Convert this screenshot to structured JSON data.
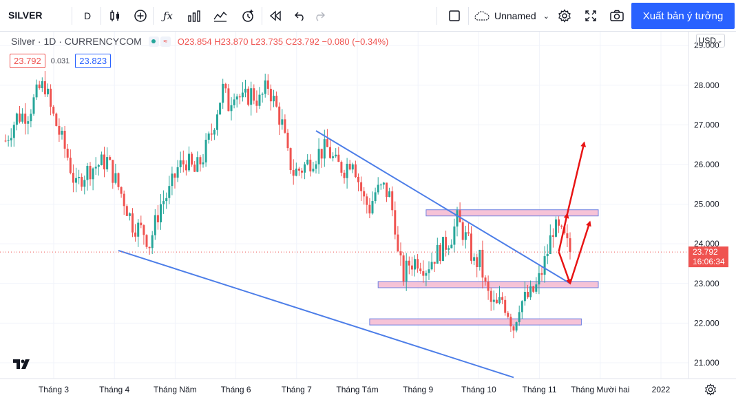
{
  "toolbar": {
    "symbol": "SILVER",
    "interval": "D",
    "layout_name": "Unnamed",
    "publish_label": "Xuất bản ý tưởng"
  },
  "legend": {
    "title": "Silver · 1D · CURRENCYCOM",
    "open": "O23.854",
    "high": "H23.870",
    "low": "L23.735",
    "close": "C23.792",
    "change": "−0.080 (−0.34%)",
    "sell_price": "23.792",
    "spread": "0.031",
    "buy_price": "23.823"
  },
  "currency": "USD",
  "price_label": {
    "price": "23.792",
    "countdown": "16:06:34"
  },
  "colors": {
    "up": "#26a69a",
    "down": "#ef5350",
    "trendline": "#4d7ee8",
    "zone_fill": "#f4b9d0",
    "zone_border": "#6d7fe0",
    "arrow": "#e81414",
    "accent": "#2962ff"
  },
  "chart_data": {
    "type": "candlestick",
    "y_axis": {
      "min": 20.6,
      "max": 29.35,
      "ticks": [
        "29.000",
        "28.000",
        "27.000",
        "26.000",
        "25.000",
        "24.000",
        "23.000",
        "22.000",
        "21.000"
      ]
    },
    "x_axis": {
      "ticks": [
        "Tháng 3",
        "Tháng 4",
        "Tháng Năm",
        "Tháng 6",
        "Tháng 7",
        "Tháng Tám",
        "Tháng 9",
        "Tháng 10",
        "Tháng 11",
        "Tháng Mười hai",
        "2022"
      ]
    },
    "current_price": 23.792,
    "price_path": [
      [
        0,
        26.6
      ],
      [
        4,
        27.2
      ],
      [
        8,
        27.3
      ],
      [
        12,
        27.9
      ],
      [
        14,
        28.0
      ],
      [
        16,
        27.4
      ],
      [
        19,
        26.8
      ],
      [
        22,
        26.2
      ],
      [
        25,
        25.4
      ],
      [
        27,
        25.7
      ],
      [
        30,
        25.9
      ],
      [
        33,
        26.0
      ],
      [
        36,
        26.1
      ],
      [
        39,
        25.6
      ],
      [
        42,
        25.1
      ],
      [
        45,
        24.5
      ],
      [
        47,
        24.4
      ],
      [
        49,
        24.3
      ],
      [
        51,
        24.0
      ],
      [
        53,
        24.5
      ],
      [
        55,
        25.0
      ],
      [
        58,
        25.3
      ],
      [
        61,
        25.9
      ],
      [
        64,
        26.1
      ],
      [
        67,
        25.8
      ],
      [
        70,
        26.2
      ],
      [
        73,
        26.8
      ],
      [
        75,
        27.4
      ],
      [
        77,
        27.9
      ],
      [
        79,
        27.5
      ],
      [
        81,
        27.9
      ],
      [
        84,
        27.6
      ],
      [
        87,
        27.8
      ],
      [
        90,
        27.6
      ],
      [
        93,
        28.0
      ],
      [
        96,
        27.4
      ],
      [
        98,
        27.0
      ],
      [
        100,
        26.2
      ],
      [
        102,
        25.8
      ],
      [
        105,
        25.9
      ],
      [
        108,
        26.1
      ],
      [
        111,
        26.3
      ],
      [
        114,
        26.4
      ],
      [
        117,
        26.0
      ],
      [
        120,
        25.9
      ],
      [
        123,
        26.2
      ],
      [
        125,
        25.6
      ],
      [
        127,
        25.1
      ],
      [
        129,
        24.9
      ],
      [
        131,
        25.3
      ],
      [
        134,
        25.4
      ],
      [
        136,
        25.2
      ],
      [
        138,
        24.5
      ],
      [
        139,
        23.7
      ],
      [
        141,
        23.2
      ],
      [
        143,
        23.5
      ],
      [
        146,
        23.6
      ],
      [
        149,
        23.4
      ],
      [
        152,
        23.7
      ],
      [
        155,
        23.9
      ],
      [
        158,
        24.2
      ],
      [
        160,
        24.6
      ],
      [
        162,
        24.3
      ],
      [
        164,
        24.0
      ],
      [
        166,
        23.5
      ],
      [
        168,
        23.6
      ],
      [
        170,
        22.9
      ],
      [
        172,
        22.5
      ],
      [
        174,
        22.4
      ],
      [
        176,
        22.6
      ],
      [
        178,
        22.3
      ],
      [
        180,
        21.9
      ],
      [
        182,
        22.5
      ],
      [
        184,
        22.6
      ],
      [
        186,
        22.7
      ],
      [
        188,
        22.9
      ],
      [
        190,
        23.3
      ],
      [
        192,
        23.8
      ],
      [
        194,
        24.4
      ],
      [
        196,
        24.3
      ],
      [
        198,
        24.1
      ],
      [
        200,
        23.8
      ]
    ],
    "trendlines": [
      {
        "from": [
          40,
          23.83
        ],
        "to": [
          180,
          20.63
        ]
      },
      {
        "from": [
          110,
          26.85
        ],
        "to": [
          200,
          23.0
        ]
      }
    ],
    "zones": [
      {
        "y": 24.78,
        "x_from": 149,
        "x_to": 210
      },
      {
        "y": 22.97,
        "x_from": 132,
        "x_to": 210
      },
      {
        "y": 22.03,
        "x_from": 129,
        "x_to": 204
      }
    ],
    "arrows": [
      {
        "from": [
          196,
          23.8
        ],
        "to": [
          200,
          23.0
        ]
      },
      {
        "from": [
          200,
          23.0
        ],
        "to": [
          207,
          24.55
        ]
      },
      {
        "from": [
          196,
          23.8
        ],
        "to": [
          199,
          24.75
        ]
      },
      {
        "from": [
          199,
          24.75
        ],
        "to": [
          205,
          26.55
        ]
      }
    ]
  }
}
